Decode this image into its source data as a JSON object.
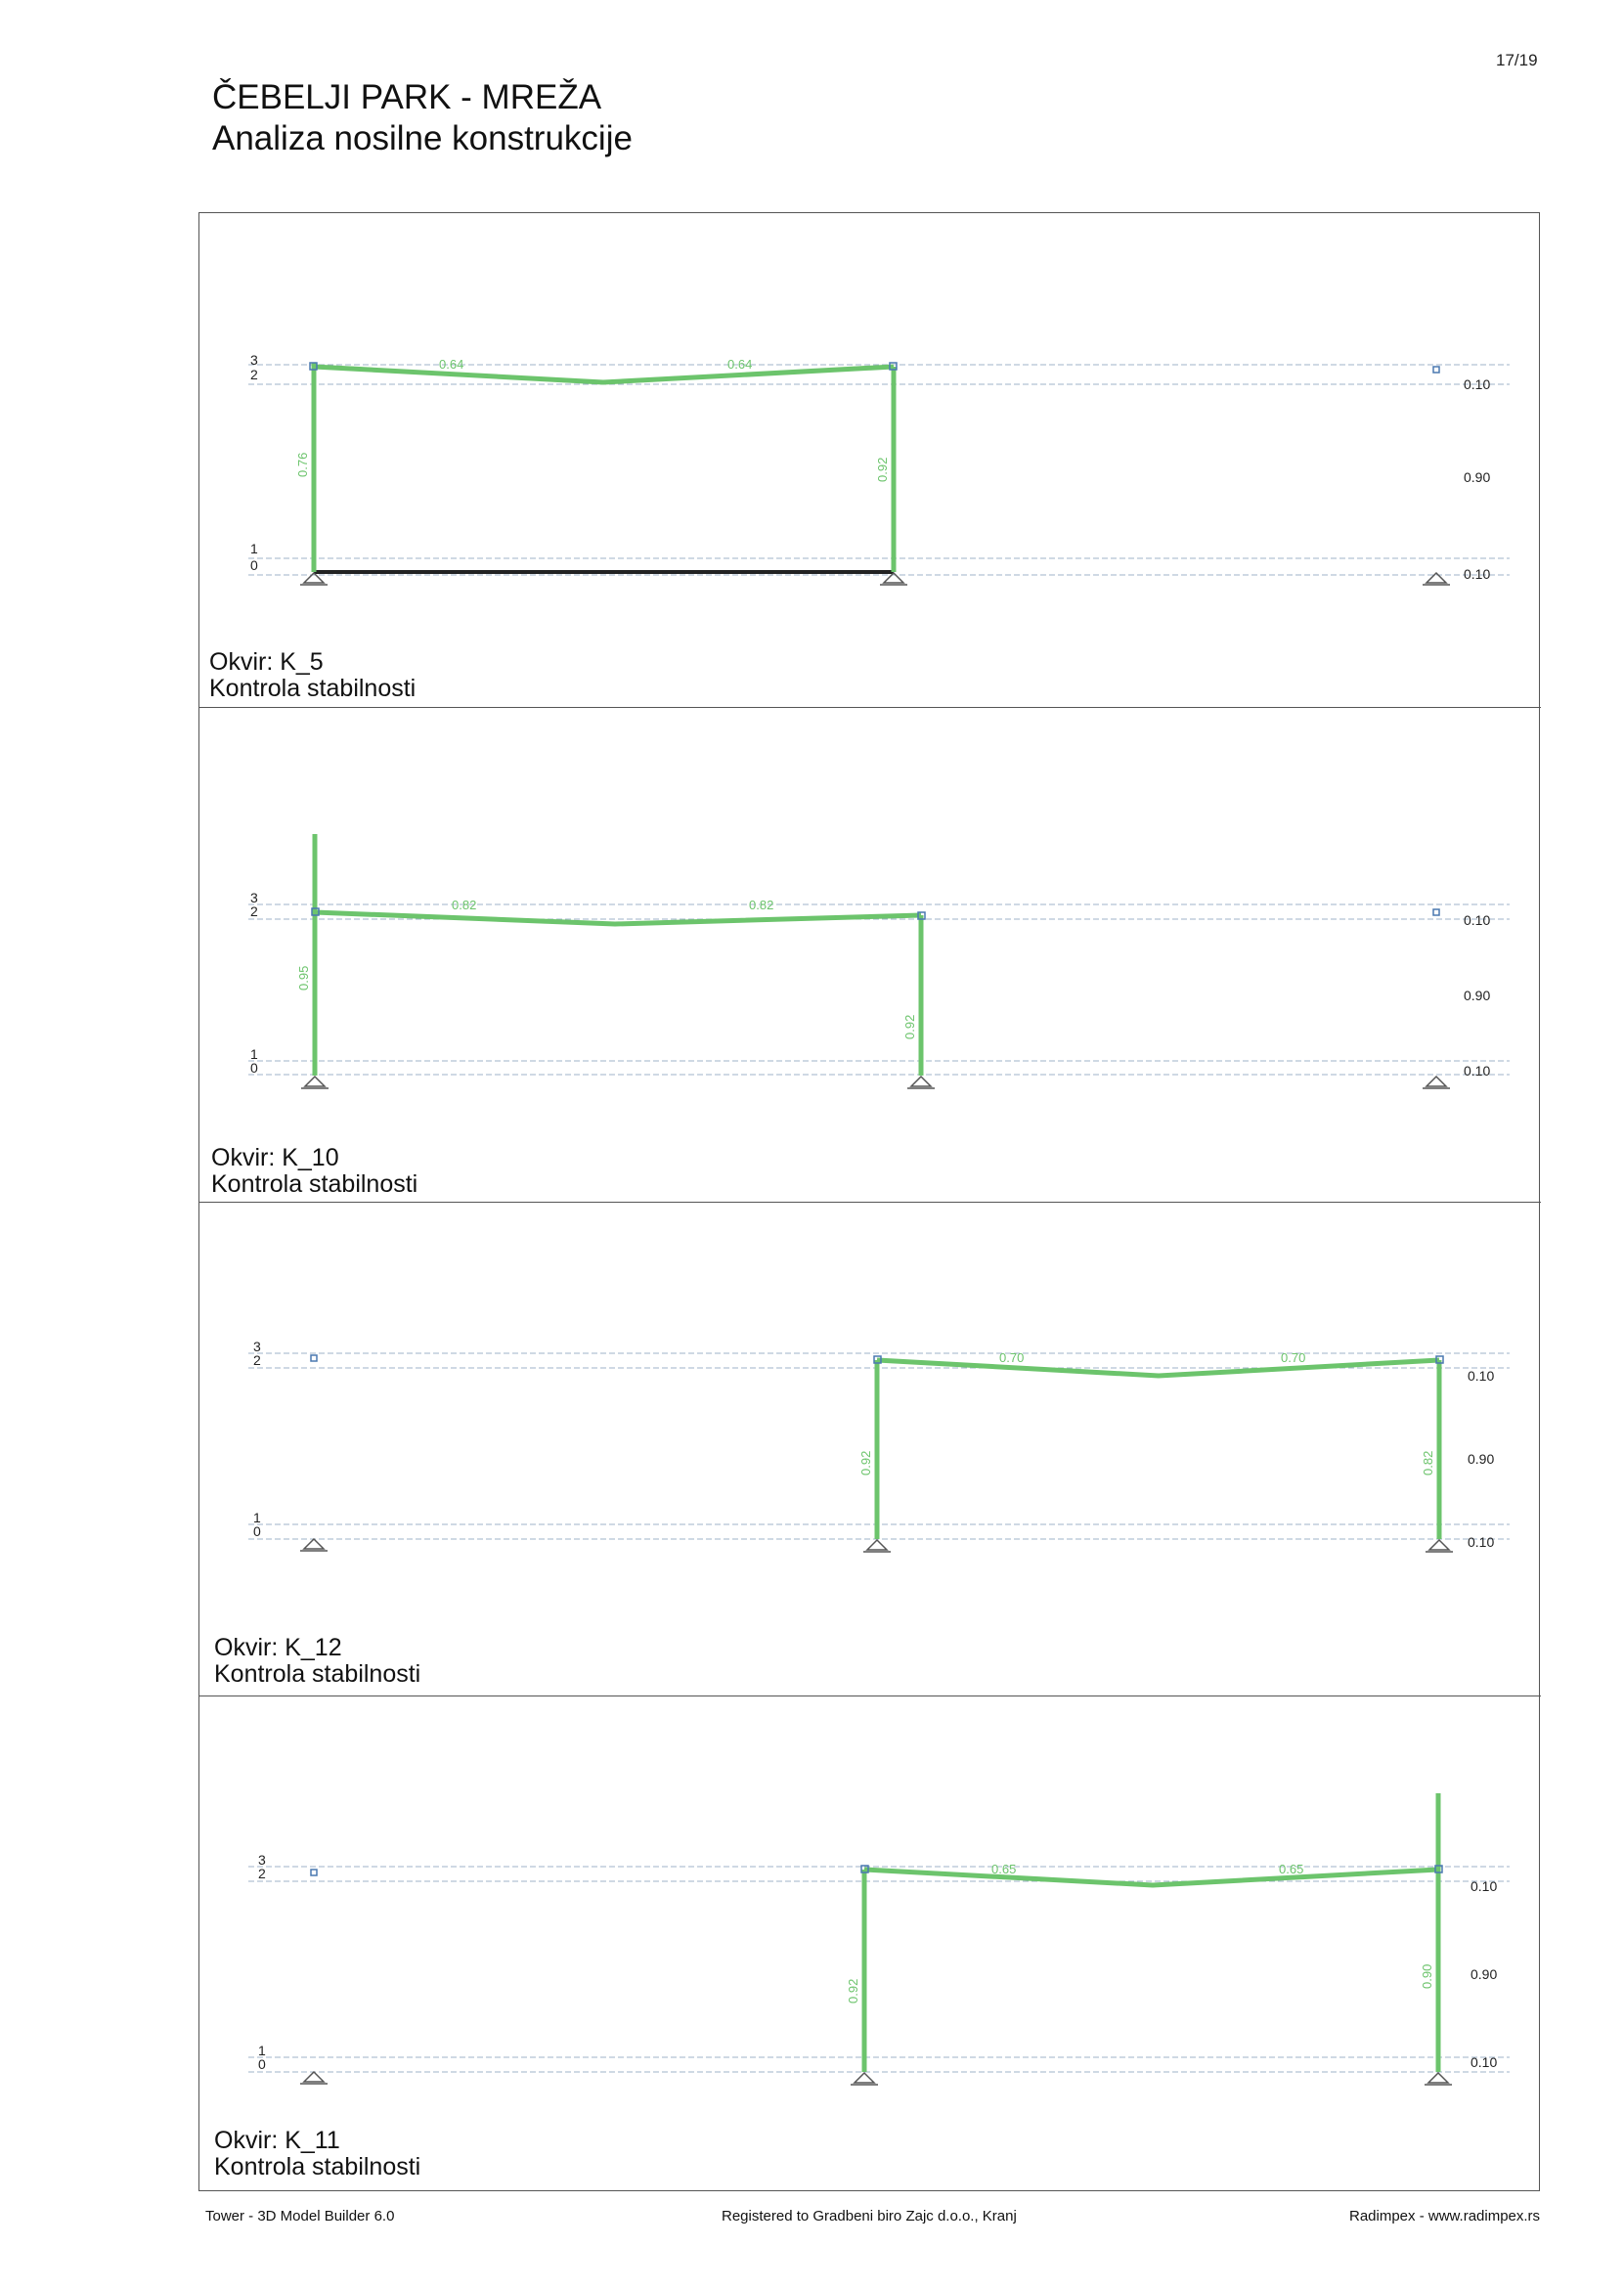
{
  "header": {
    "page_number": "17/19",
    "title": "ČEBELJI PARK - MREŽA",
    "subtitle": "Analiza nosilne konstrukcije"
  },
  "colors": {
    "member": "#6cc46c",
    "member_label": "#6cc46c",
    "grid_line": "#9fb3c8",
    "support": "#555555",
    "node": "#4a78b0"
  },
  "level_labels": {
    "l3": "3",
    "l2": "2",
    "l1": "1",
    "l0": "0"
  },
  "panels": [
    {
      "frame_label": "Okvir: K_5",
      "check_label": "Kontrola stabilnosti",
      "right_values": [
        "0.10",
        "0.90",
        "0.10"
      ],
      "columns_util": [
        "0.76",
        "0.92"
      ],
      "beam_util": [
        "0.64",
        "0.64"
      ]
    },
    {
      "frame_label": "Okvir: K_10",
      "check_label": "Kontrola stabilnosti",
      "right_values": [
        "0.10",
        "0.90",
        "0.10"
      ],
      "columns_util": [
        "0.95",
        "0.92"
      ],
      "beam_util": [
        "0.82",
        "0.82"
      ]
    },
    {
      "frame_label": "Okvir: K_12",
      "check_label": "Kontrola stabilnosti",
      "right_values": [
        "0.10",
        "0.90",
        "0.10"
      ],
      "columns_util": [
        "0.92",
        "0.82"
      ],
      "beam_util": [
        "0.70",
        "0.70"
      ]
    },
    {
      "frame_label": "Okvir: K_11",
      "check_label": "Kontrola stabilnosti",
      "right_values": [
        "0.10",
        "0.90",
        "0.10"
      ],
      "columns_util": [
        "0.92",
        "0.90"
      ],
      "beam_util": [
        "0.65",
        "0.65"
      ]
    }
  ],
  "footer": {
    "left": "Tower - 3D Model Builder 6.0",
    "center": "Registered to Gradbeni biro Zajc d.o.o., Kranj",
    "right": "Radimpex - www.radimpex.rs"
  }
}
